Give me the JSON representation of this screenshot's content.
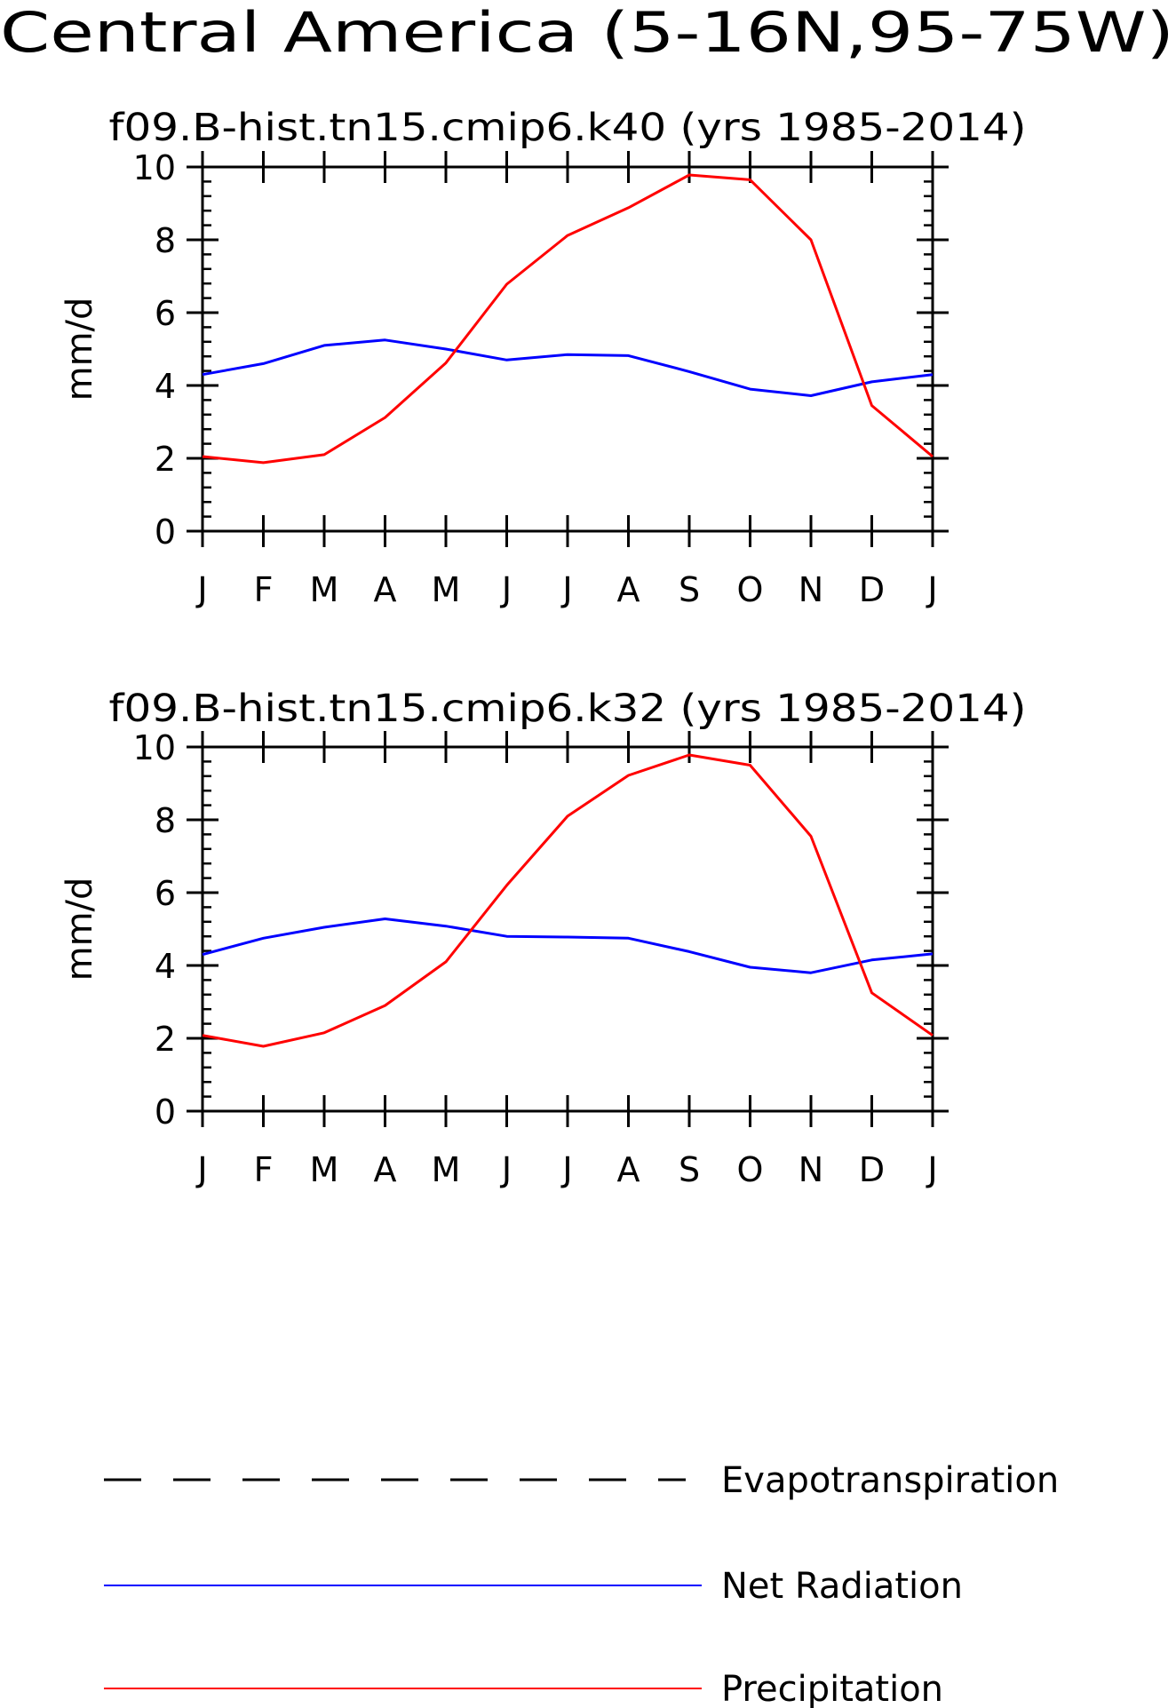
{
  "title": "Central America (5-16N,95-75W)",
  "colors": {
    "net_radiation": "#0000ff",
    "precipitation": "#ff0000",
    "evapotranspiration": "#000000"
  },
  "legend": [
    {
      "label": "Evapotranspiration",
      "style": "dashed",
      "color": "#000000"
    },
    {
      "label": "Net Radiation",
      "style": "solid",
      "color": "#0000ff"
    },
    {
      "label": "Precipitation",
      "style": "solid",
      "color": "#ff0000"
    }
  ],
  "chart_data": [
    {
      "type": "line",
      "title": "f09.B-hist.tn15.cmip6.k40 (yrs 1985-2014)",
      "xlabel": "",
      "ylabel": "mm/d",
      "categories": [
        "J",
        "F",
        "M",
        "A",
        "M",
        "J",
        "J",
        "A",
        "S",
        "O",
        "N",
        "D",
        "J"
      ],
      "ylim": [
        0,
        10
      ],
      "yticks": [
        0,
        2,
        4,
        6,
        8,
        10
      ],
      "series": [
        {
          "name": "Net Radiation",
          "color": "#0000ff",
          "values": [
            4.3,
            4.6,
            5.1,
            5.25,
            5.0,
            4.7,
            4.85,
            4.82,
            4.38,
            3.9,
            3.72,
            4.1,
            4.3
          ]
        },
        {
          "name": "Precipitation",
          "color": "#ff0000",
          "values": [
            2.05,
            1.88,
            2.1,
            3.12,
            4.62,
            6.78,
            8.12,
            8.88,
            9.78,
            9.65,
            8.0,
            3.45,
            2.05
          ]
        }
      ]
    },
    {
      "type": "line",
      "title": "f09.B-hist.tn15.cmip6.k32 (yrs 1985-2014)",
      "xlabel": "",
      "ylabel": "mm/d",
      "categories": [
        "J",
        "F",
        "M",
        "A",
        "M",
        "J",
        "J",
        "A",
        "S",
        "O",
        "N",
        "D",
        "J"
      ],
      "ylim": [
        0,
        10
      ],
      "yticks": [
        0,
        2,
        4,
        6,
        8,
        10
      ],
      "series": [
        {
          "name": "Net Radiation",
          "color": "#0000ff",
          "values": [
            4.3,
            4.75,
            5.05,
            5.28,
            5.08,
            4.8,
            4.78,
            4.75,
            4.38,
            3.95,
            3.8,
            4.15,
            4.32
          ]
        },
        {
          "name": "Precipitation",
          "color": "#ff0000",
          "values": [
            2.08,
            1.78,
            2.15,
            2.9,
            4.1,
            6.2,
            8.1,
            9.22,
            9.78,
            9.5,
            7.55,
            3.25,
            2.08
          ]
        }
      ]
    }
  ]
}
